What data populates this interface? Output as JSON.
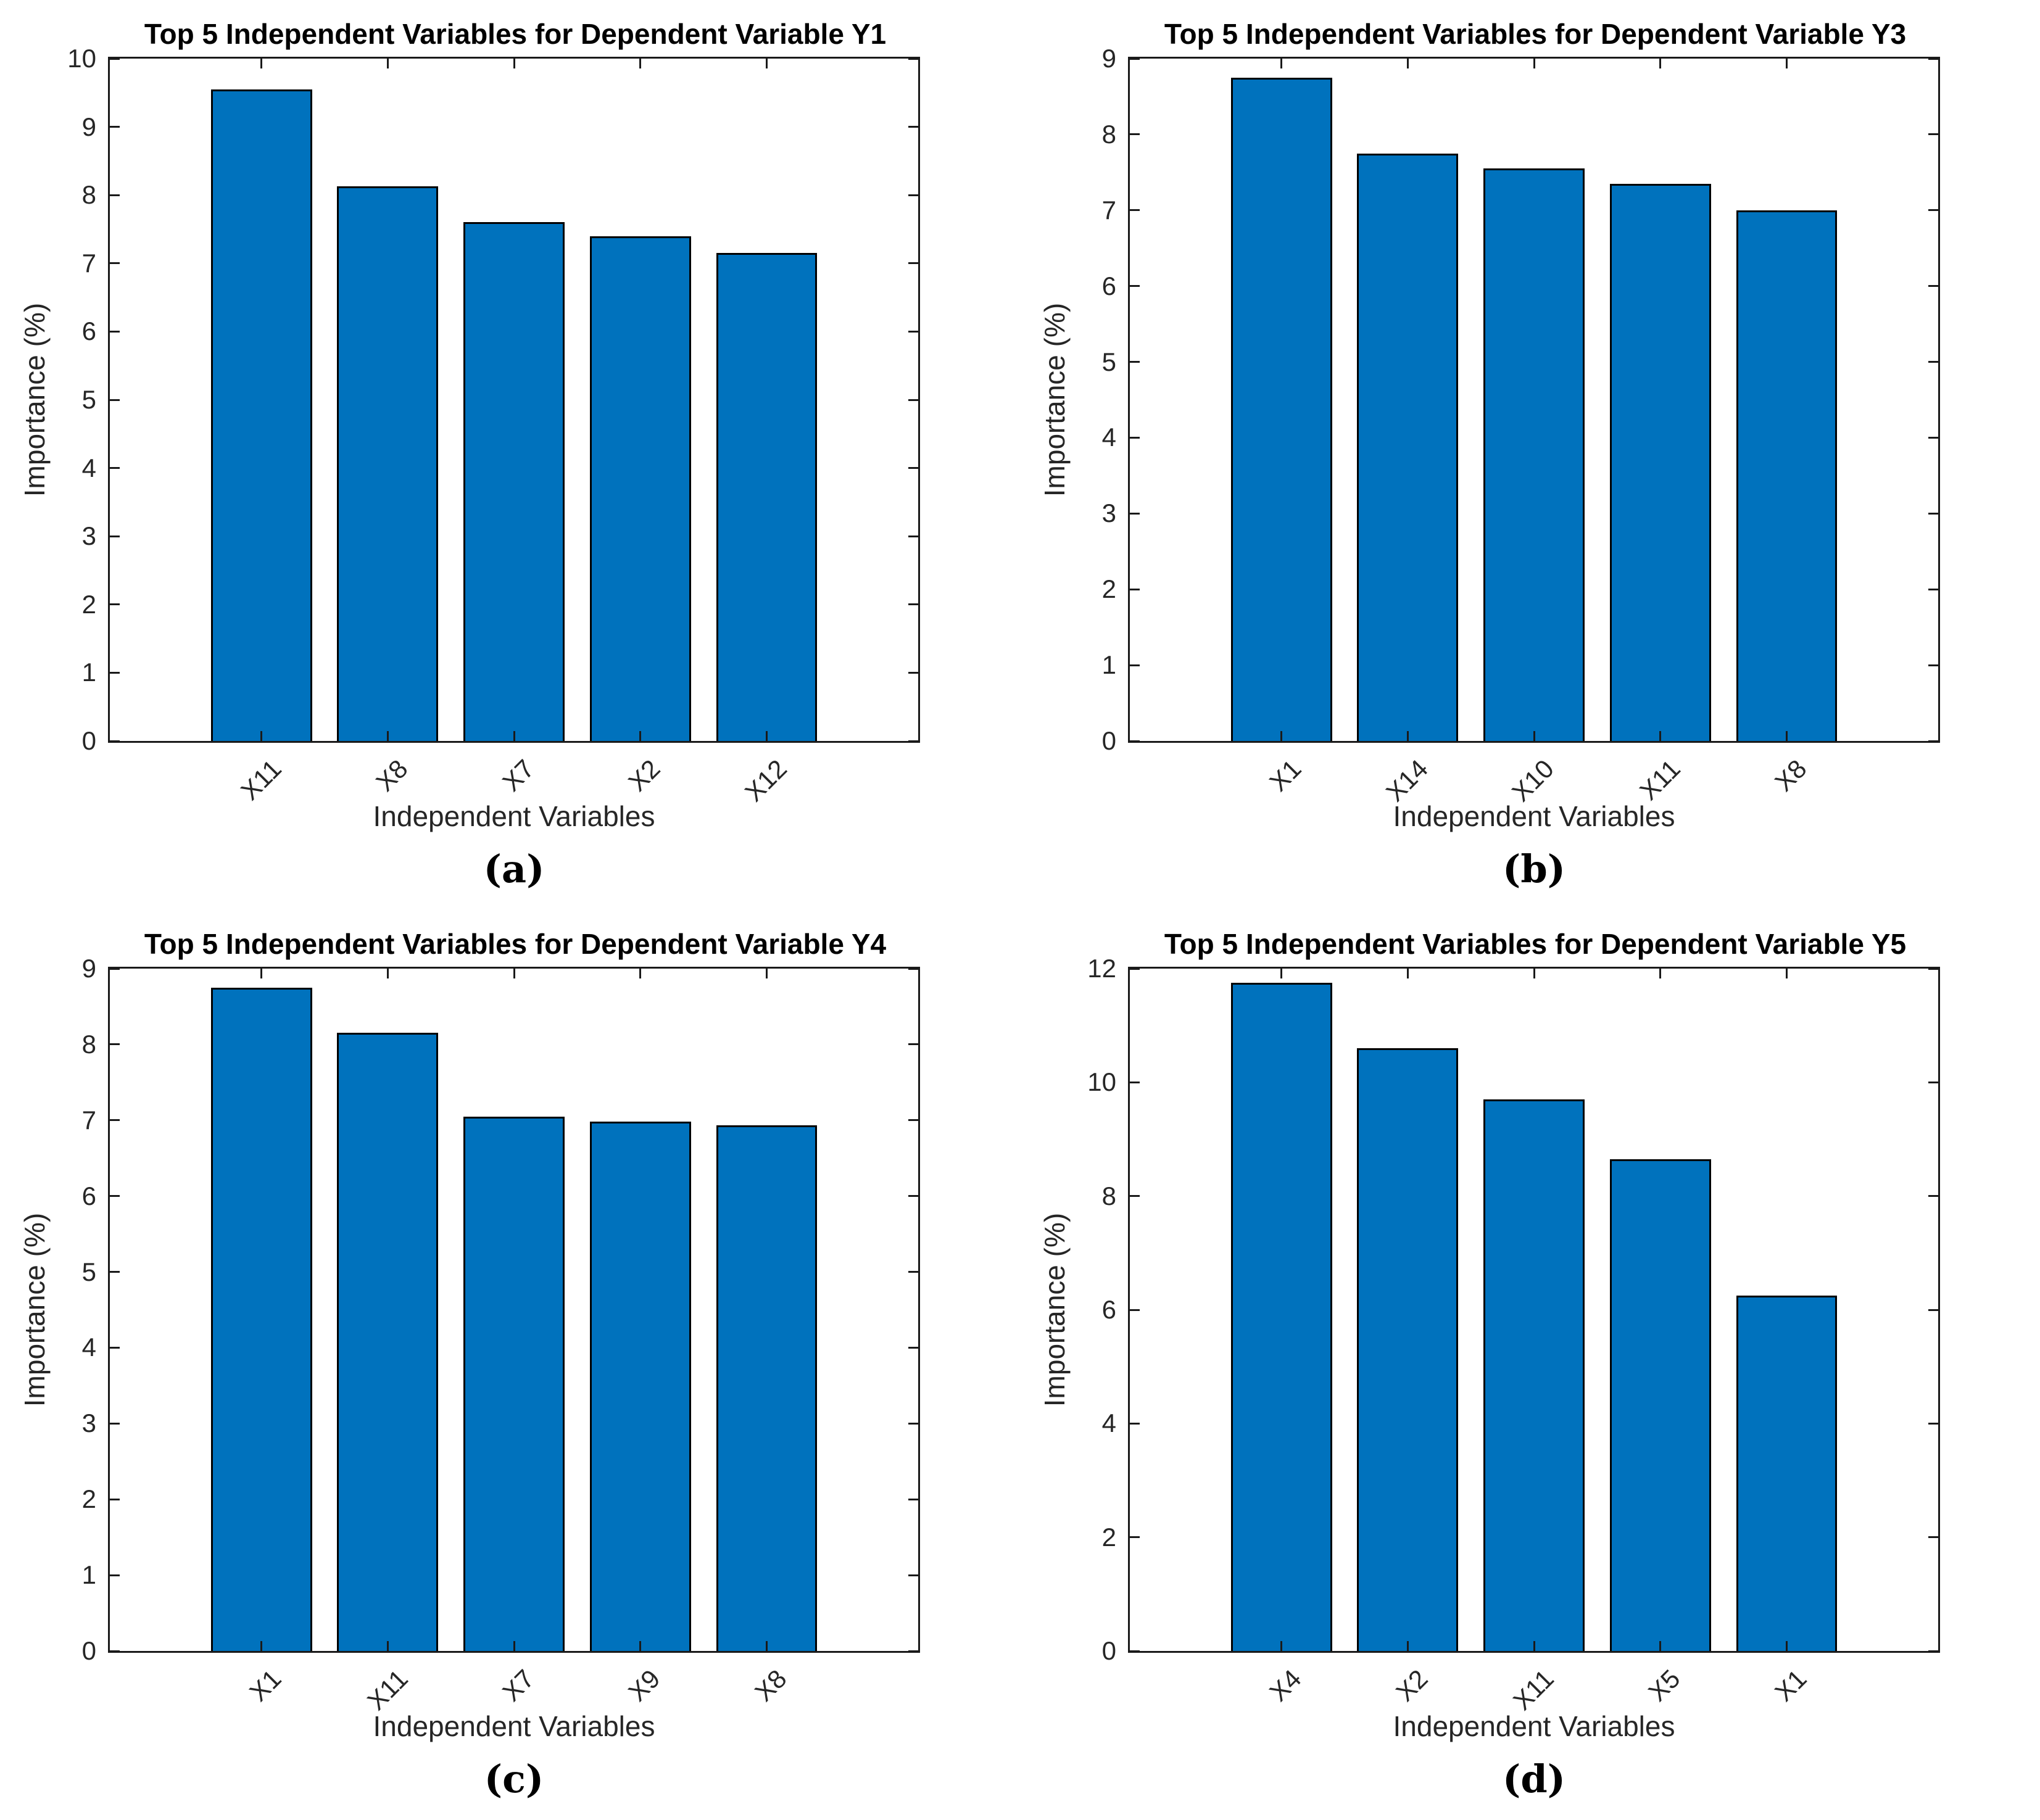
{
  "figure": {
    "background": "#ffffff",
    "bar_fill_color": "#0072BD",
    "bar_edge_color": "#000000",
    "axis_color": "#1a1a1a",
    "tick_label_color": "#262626"
  },
  "chart_data": [
    {
      "type": "bar",
      "title": "Top 5 Independent Variables for Dependent Variable Y1",
      "caption": "(a)",
      "xlabel": "Independent Variables",
      "ylabel": "Importance (%)",
      "categories": [
        "X11",
        "X8",
        "X7",
        "X2",
        "X12"
      ],
      "values": [
        9.55,
        8.13,
        7.6,
        7.4,
        7.15
      ],
      "ylim": [
        0,
        10
      ],
      "yticks": [
        0,
        1,
        2,
        3,
        4,
        5,
        6,
        7,
        8,
        9,
        10
      ],
      "grid": false,
      "legend": null
    },
    {
      "type": "bar",
      "title": "Top 5 Independent Variables for Dependent Variable Y3",
      "caption": "(b)",
      "xlabel": "Independent Variables",
      "ylabel": "Importance (%)",
      "categories": [
        "X1",
        "X14",
        "X10",
        "X11",
        "X8"
      ],
      "values": [
        8.75,
        7.75,
        7.55,
        7.35,
        7.0
      ],
      "ylim": [
        0,
        9
      ],
      "yticks": [
        0,
        1,
        2,
        3,
        4,
        5,
        6,
        7,
        8,
        9
      ],
      "grid": false,
      "legend": null
    },
    {
      "type": "bar",
      "title": "Top 5 Independent Variables for Dependent Variable Y4",
      "caption": "(c)",
      "xlabel": "Independent Variables",
      "ylabel": "Importance (%)",
      "categories": [
        "X1",
        "X11",
        "X7",
        "X9",
        "X8"
      ],
      "values": [
        8.75,
        8.15,
        7.05,
        6.98,
        6.93
      ],
      "ylim": [
        0,
        9
      ],
      "yticks": [
        0,
        1,
        2,
        3,
        4,
        5,
        6,
        7,
        8,
        9
      ],
      "grid": false,
      "legend": null
    },
    {
      "type": "bar",
      "title": "Top 5 Independent Variables for Dependent Variable Y5",
      "caption": "(d)",
      "xlabel": "Independent Variables",
      "ylabel": "Importance (%)",
      "categories": [
        "X4",
        "X2",
        "X11",
        "X5",
        "X1"
      ],
      "values": [
        11.75,
        10.6,
        9.7,
        8.65,
        6.25
      ],
      "ylim": [
        0,
        12
      ],
      "yticks": [
        0,
        2,
        4,
        6,
        8,
        10,
        12
      ],
      "grid": false,
      "legend": null
    }
  ]
}
